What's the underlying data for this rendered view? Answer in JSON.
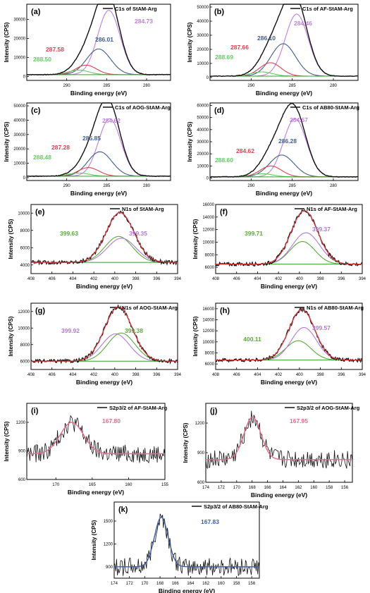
{
  "figure": {
    "colors": {
      "raw": "#111111",
      "fit": "#e8383d",
      "c_main": "#c07ee0",
      "c_mid": "#3f5d8f",
      "c_ox": "#e0404f",
      "c_carb": "#5fcf5f",
      "n_green": "#5aaa3a",
      "n_violet": "#b07ad8",
      "s_fit": "#e86a8a",
      "s_fit_k": "#3e5fa6",
      "baseline": "#2ca02c"
    }
  },
  "chart_data": [
    {
      "panel": "(a)",
      "type": "line",
      "legend": "C1s of StAM-Arg",
      "xlabel": "Binding energy (eV)",
      "ylabel": "Intensity (CPS)",
      "xlim": [
        295,
        277
      ],
      "ylim": [
        -2000,
        38000
      ],
      "xticks": [
        290,
        285,
        280
      ],
      "yticks": [
        0,
        10000,
        20000,
        30000
      ],
      "baseline": 1000,
      "peaks": [
        {
          "center": 284.73,
          "height": 33800,
          "width": 1.4,
          "label": "284.73",
          "color": "c_main"
        },
        {
          "center": 286.01,
          "height": 13500,
          "width": 1.5,
          "label": "286.01",
          "color": "c_mid"
        },
        {
          "center": 287.58,
          "height": 5000,
          "width": 1.3,
          "label": "287.58",
          "color": "c_ox"
        },
        {
          "center": 288.5,
          "height": 2400,
          "width": 1.3,
          "label": "288.50",
          "color": "c_carb"
        }
      ]
    },
    {
      "panel": "(b)",
      "type": "line",
      "legend": "C1s of AF-StAM-Arg",
      "xlabel": "Binding energy (eV)",
      "ylabel": "Intensity (CPS)",
      "xlim": [
        295,
        277
      ],
      "ylim": [
        -2000,
        52000
      ],
      "xticks": [
        290,
        285,
        280
      ],
      "yticks": [
        0,
        10000,
        20000,
        30000,
        40000,
        50000
      ],
      "baseline": 1000,
      "peaks": [
        {
          "center": 284.46,
          "height": 44000,
          "width": 1.4,
          "label": "284.46",
          "color": "c_main"
        },
        {
          "center": 286.1,
          "height": 23000,
          "width": 1.5,
          "label": "286.10",
          "color": "c_mid"
        },
        {
          "center": 287.66,
          "height": 9500,
          "width": 1.3,
          "label": "287.66",
          "color": "c_ox"
        },
        {
          "center": 288.69,
          "height": 3000,
          "width": 1.3,
          "label": "288.69",
          "color": "c_carb"
        }
      ]
    },
    {
      "panel": "(c)",
      "type": "line",
      "legend": "C1s of AOG-StAM-Arg",
      "xlabel": "Binding energy (eV)",
      "ylabel": "Intensity (CPS)",
      "xlim": [
        295,
        277
      ],
      "ylim": [
        -2000,
        52000
      ],
      "xticks": [
        290,
        285,
        280
      ],
      "yticks": [
        0,
        10000,
        20000,
        30000,
        40000,
        50000
      ],
      "baseline": 1000,
      "peaks": [
        {
          "center": 284.62,
          "height": 40000,
          "width": 1.4,
          "label": "284.62",
          "color": "c_main"
        },
        {
          "center": 285.85,
          "height": 17000,
          "width": 1.5,
          "label": "285.85",
          "color": "c_mid"
        },
        {
          "center": 287.28,
          "height": 6000,
          "width": 1.3,
          "label": "287.28",
          "color": "c_ox"
        },
        {
          "center": 288.48,
          "height": 2200,
          "width": 1.3,
          "label": "288.48",
          "color": "c_carb"
        }
      ]
    },
    {
      "panel": "(d)",
      "type": "line",
      "legend": "C1s of AB80-StAM-Arg",
      "xlabel": "Binding energy (eV)",
      "ylabel": "Intensity (CPS)",
      "xlim": [
        295,
        277
      ],
      "ylim": [
        -2000,
        62000
      ],
      "xticks": [
        290,
        285,
        280
      ],
      "yticks": [
        0,
        10000,
        20000,
        30000,
        40000,
        50000,
        60000
      ],
      "baseline": 1000,
      "peaks": [
        {
          "center": 284.67,
          "height": 48000,
          "width": 1.4,
          "label": "284.67",
          "color": "c_main"
        },
        {
          "center": 286.28,
          "height": 18000,
          "width": 1.5,
          "label": "286.28",
          "color": "c_mid"
        },
        {
          "center": 284.62,
          "height": 0,
          "width": 1.3,
          "label": "284.62",
          "color": "c_ox"
        },
        {
          "center": 288.6,
          "height": 2500,
          "width": 1.3,
          "label": "288.60",
          "color": "c_carb"
        }
      ],
      "extra_red_peak": {
        "center": 287.6,
        "height": 9000,
        "width": 1.3
      }
    },
    {
      "panel": "(e)",
      "type": "line",
      "legend": "N1s of StAM-Arg",
      "xlabel": "Binding energy (eV)",
      "ylabel": "Intensity (CPS)",
      "xlim": [
        408,
        394
      ],
      "ylim": [
        3000,
        11000
      ],
      "xticks": [
        408,
        406,
        404,
        402,
        400,
        398,
        396,
        394
      ],
      "yticks": [
        4000,
        6000,
        8000,
        10000
      ],
      "baseline": 4300,
      "peaks": [
        {
          "center": 399.63,
          "height": 3000,
          "width": 1.3,
          "label": "399.63",
          "color": "n_green"
        },
        {
          "center": 399.35,
          "height": 2800,
          "width": 1.35,
          "label": "399.35",
          "color": "n_violet"
        }
      ]
    },
    {
      "panel": "(f)",
      "type": "line",
      "legend": "N1s of AF-StAM-Arg",
      "xlabel": "Binding energy (eV)",
      "ylabel": "Intensity (CPS)",
      "xlim": [
        408,
        394
      ],
      "ylim": [
        5000,
        16000
      ],
      "xticks": [
        408,
        406,
        404,
        402,
        400,
        398,
        396,
        394
      ],
      "yticks": [
        6000,
        8000,
        10000,
        12000,
        14000,
        16000
      ],
      "baseline": 6500,
      "peaks": [
        {
          "center": 399.71,
          "height": 3600,
          "width": 1.2,
          "label": "399.71",
          "color": "n_green"
        },
        {
          "center": 399.37,
          "height": 5000,
          "width": 1.3,
          "label": "399.37",
          "color": "n_violet"
        }
      ]
    },
    {
      "panel": "(g)",
      "type": "line",
      "legend": "N1s of AOG-StAM-Arg",
      "xlabel": "Binding energy (eV)",
      "ylabel": "Intensity (CPS)",
      "xlim": [
        408,
        394
      ],
      "ylim": [
        5000,
        13000
      ],
      "xticks": [
        408,
        406,
        404,
        402,
        400,
        398,
        396,
        394
      ],
      "yticks": [
        6000,
        8000,
        10000,
        12000
      ],
      "baseline": 6000,
      "peaks": [
        {
          "center": 399.92,
          "height": 3300,
          "width": 1.3,
          "label": "399.92",
          "color": "n_violet"
        },
        {
          "center": 399.38,
          "height": 3400,
          "width": 1.3,
          "label": "399.38",
          "color": "n_green"
        }
      ]
    },
    {
      "panel": "(h)",
      "type": "line",
      "legend": "N1s of AB80-StAM-Arg",
      "xlabel": "Binding energy (eV)",
      "ylabel": "Intensity (CPS)",
      "xlim": [
        408,
        394
      ],
      "ylim": [
        5000,
        17000
      ],
      "xticks": [
        408,
        406,
        404,
        402,
        400,
        398,
        396,
        394
      ],
      "yticks": [
        6000,
        8000,
        10000,
        12000,
        14000,
        16000
      ],
      "baseline": 6700,
      "peaks": [
        {
          "center": 400.11,
          "height": 3500,
          "width": 1.2,
          "label": "400.11",
          "color": "n_green"
        },
        {
          "center": 399.57,
          "height": 5900,
          "width": 1.2,
          "label": "399.57",
          "color": "n_violet"
        }
      ]
    },
    {
      "panel": "(i)",
      "type": "line",
      "legend": "S2p3/2 of AF-StAM-Arg",
      "xlabel": "Binding energy (eV)",
      "ylabel": "Intensity (CPS)",
      "xlim": [
        174,
        155
      ],
      "ylim": [
        600,
        1400
      ],
      "xticks": [
        170,
        165,
        160,
        155
      ],
      "yticks": [
        600,
        900,
        1200
      ],
      "baseline": 870,
      "peaks": [
        {
          "center": 167.8,
          "height": 330,
          "width": 1.6,
          "label": "167.80",
          "color": "s_fit"
        }
      ]
    },
    {
      "panel": "(j)",
      "type": "line",
      "legend": "S2p3/2 of AOG-StAM-Arg",
      "xlabel": "Binding energy (eV)",
      "ylabel": "Intensity (CPS)",
      "xlim": [
        174,
        155
      ],
      "ylim": [
        600,
        1400
      ],
      "xticks": [
        174,
        172,
        170,
        168,
        166,
        164,
        162,
        160,
        158,
        156
      ],
      "yticks": [
        600,
        900,
        1200
      ],
      "baseline": 830,
      "peaks": [
        {
          "center": 167.95,
          "height": 430,
          "width": 1.1,
          "label": "167.95",
          "color": "s_fit"
        }
      ]
    },
    {
      "panel": "(k)",
      "type": "line",
      "legend": "S2p3/2 of AB80-StAM-Arg",
      "xlabel": "Binding energy (eV)",
      "ylabel": "Intensity (CPS)",
      "xlim": [
        174,
        155
      ],
      "ylim": [
        750,
        1750
      ],
      "xticks": [
        174,
        172,
        170,
        168,
        166,
        164,
        162,
        160,
        158,
        156
      ],
      "yticks": [
        900,
        1200,
        1500
      ],
      "baseline": 900,
      "peaks": [
        {
          "center": 167.83,
          "height": 650,
          "width": 0.9,
          "label": "167.83",
          "color": "s_fit_k"
        }
      ]
    }
  ]
}
